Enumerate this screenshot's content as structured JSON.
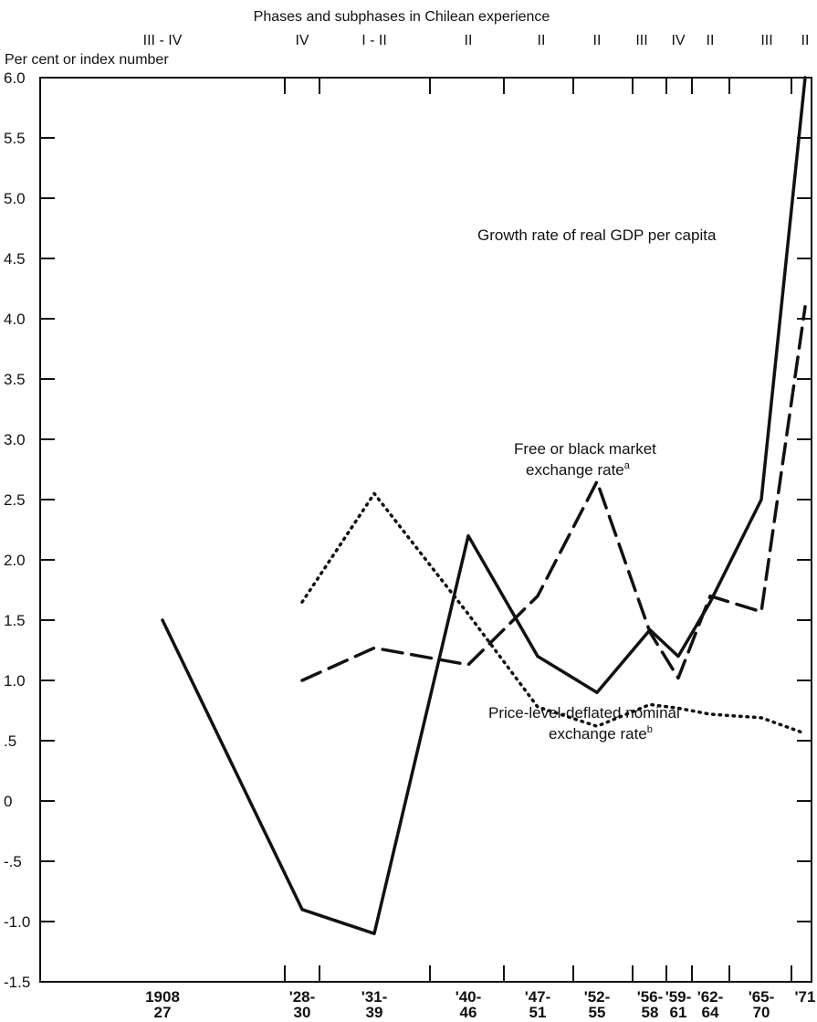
{
  "chart_data": {
    "type": "line",
    "title": "Phases and subphases in Chilean experience",
    "ylabel": "Per cent or index number",
    "xlabel": "",
    "ylim": [
      -1.5,
      6.0
    ],
    "y_ticks": [
      {
        "value": 6.0,
        "label": "6.0"
      },
      {
        "value": 5.5,
        "label": "5.5"
      },
      {
        "value": 5.0,
        "label": "5.0"
      },
      {
        "value": 4.5,
        "label": "4.5"
      },
      {
        "value": 4.0,
        "label": "4.0"
      },
      {
        "value": 3.5,
        "label": "3.5"
      },
      {
        "value": 3.0,
        "label": "3.0"
      },
      {
        "value": 2.5,
        "label": "2.5"
      },
      {
        "value": 2.0,
        "label": "2.0"
      },
      {
        "value": 1.5,
        "label": "1.5"
      },
      {
        "value": 1.0,
        "label": "1.0"
      },
      {
        "value": 0.5,
        "label": ".5"
      },
      {
        "value": 0,
        "label": "0"
      },
      {
        "value": -0.5,
        "label": "-.5"
      },
      {
        "value": -1.0,
        "label": "-1.0"
      },
      {
        "value": -1.5,
        "label": "-1.5"
      }
    ],
    "categories": [
      {
        "top": "1908",
        "bottom": "27",
        "phase": "III - IV"
      },
      {
        "top": "'28-",
        "bottom": "30",
        "phase": "IV"
      },
      {
        "top": "'31-",
        "bottom": "39",
        "phase": "I - II"
      },
      {
        "top": "'40-",
        "bottom": "46",
        "phase": "II"
      },
      {
        "top": "'47-",
        "bottom": "51",
        "phase": "II"
      },
      {
        "top": "'52-",
        "bottom": "55",
        "phase": "II"
      },
      {
        "top": "'56-",
        "bottom": "58",
        "phase": "III"
      },
      {
        "top": "'59-",
        "bottom": "61",
        "phase": "IV"
      },
      {
        "top": "'62-",
        "bottom": "64",
        "phase": "II"
      },
      {
        "top": "'65-",
        "bottom": "70",
        "phase": "III"
      },
      {
        "top": "'71",
        "bottom": "",
        "phase": "II"
      }
    ],
    "series": [
      {
        "name": "Growth rate of real GDP per capita",
        "style": "solid",
        "values": [
          1.5,
          -0.9,
          -1.1,
          2.2,
          1.2,
          0.9,
          1.42,
          1.2,
          1.65,
          2.5,
          6.0
        ]
      },
      {
        "name": "Free or black market exchange rate",
        "name_line2": "exchange rate",
        "name_line1": "Free or black market",
        "footnote": "a",
        "style": "dashed",
        "values": [
          null,
          1.0,
          1.27,
          1.13,
          1.7,
          2.65,
          1.4,
          1.02,
          1.7,
          1.57,
          4.1
        ]
      },
      {
        "name": "Price-level-deflated nominal exchange rate",
        "name_line1": "Price-level-deflated nominal",
        "name_line2": "exchange rate",
        "footnote": "b",
        "style": "dotted",
        "values": [
          null,
          1.65,
          2.55,
          1.55,
          0.78,
          0.62,
          0.8,
          0.77,
          0.72,
          0.69,
          0.56
        ]
      }
    ]
  }
}
